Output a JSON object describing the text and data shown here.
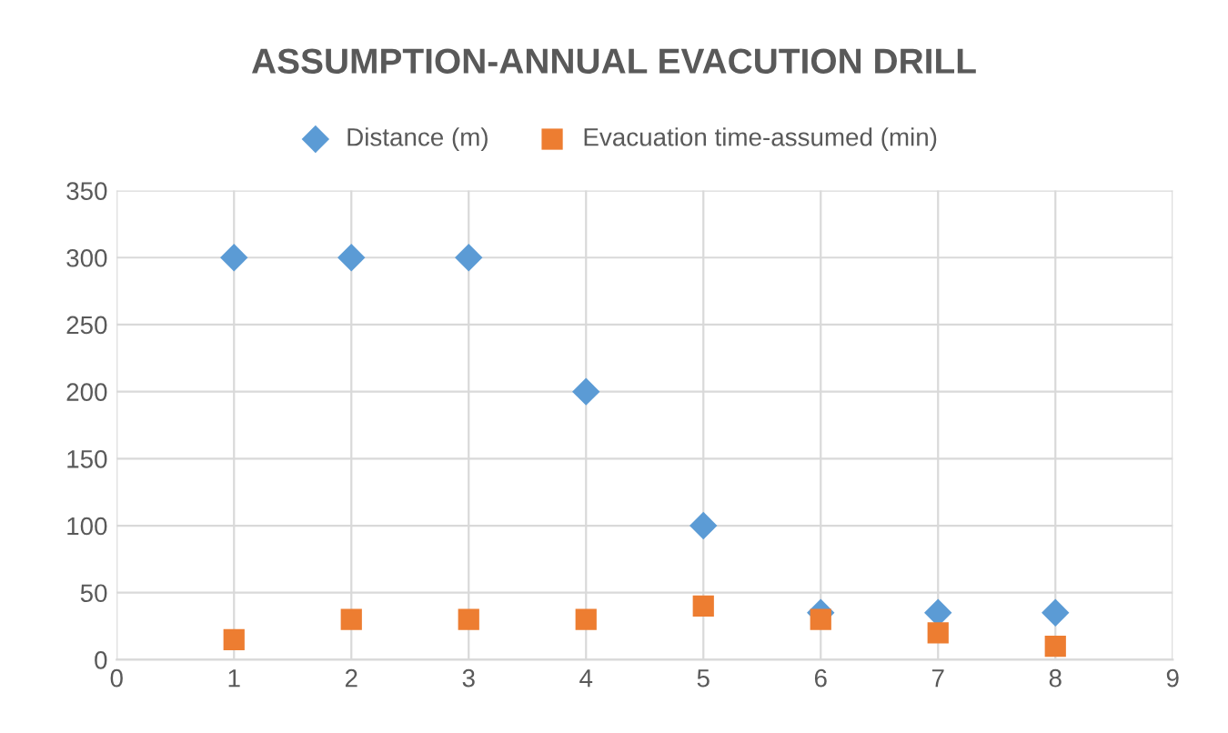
{
  "chart_data": {
    "type": "scatter",
    "title": "ASSUMPTION-ANNUAL EVACUTION DRILL",
    "x": [
      1,
      2,
      3,
      4,
      5,
      6,
      7,
      8
    ],
    "series": [
      {
        "name": "Distance (m)",
        "color": "#5b9bd5",
        "marker": "diamond",
        "values": [
          300,
          300,
          300,
          200,
          100,
          35,
          35,
          35
        ]
      },
      {
        "name": "Evacuation time-assumed (min)",
        "color": "#ed7d31",
        "marker": "square",
        "values": [
          15,
          30,
          30,
          30,
          40,
          30,
          20,
          10
        ]
      }
    ],
    "xlim": [
      0,
      9
    ],
    "xticks": [
      0,
      1,
      2,
      3,
      4,
      5,
      6,
      7,
      8,
      9
    ],
    "ylim": [
      0,
      350
    ],
    "yticks": [
      0,
      50,
      100,
      150,
      200,
      250,
      300,
      350
    ],
    "grid": true,
    "legend": "top"
  }
}
